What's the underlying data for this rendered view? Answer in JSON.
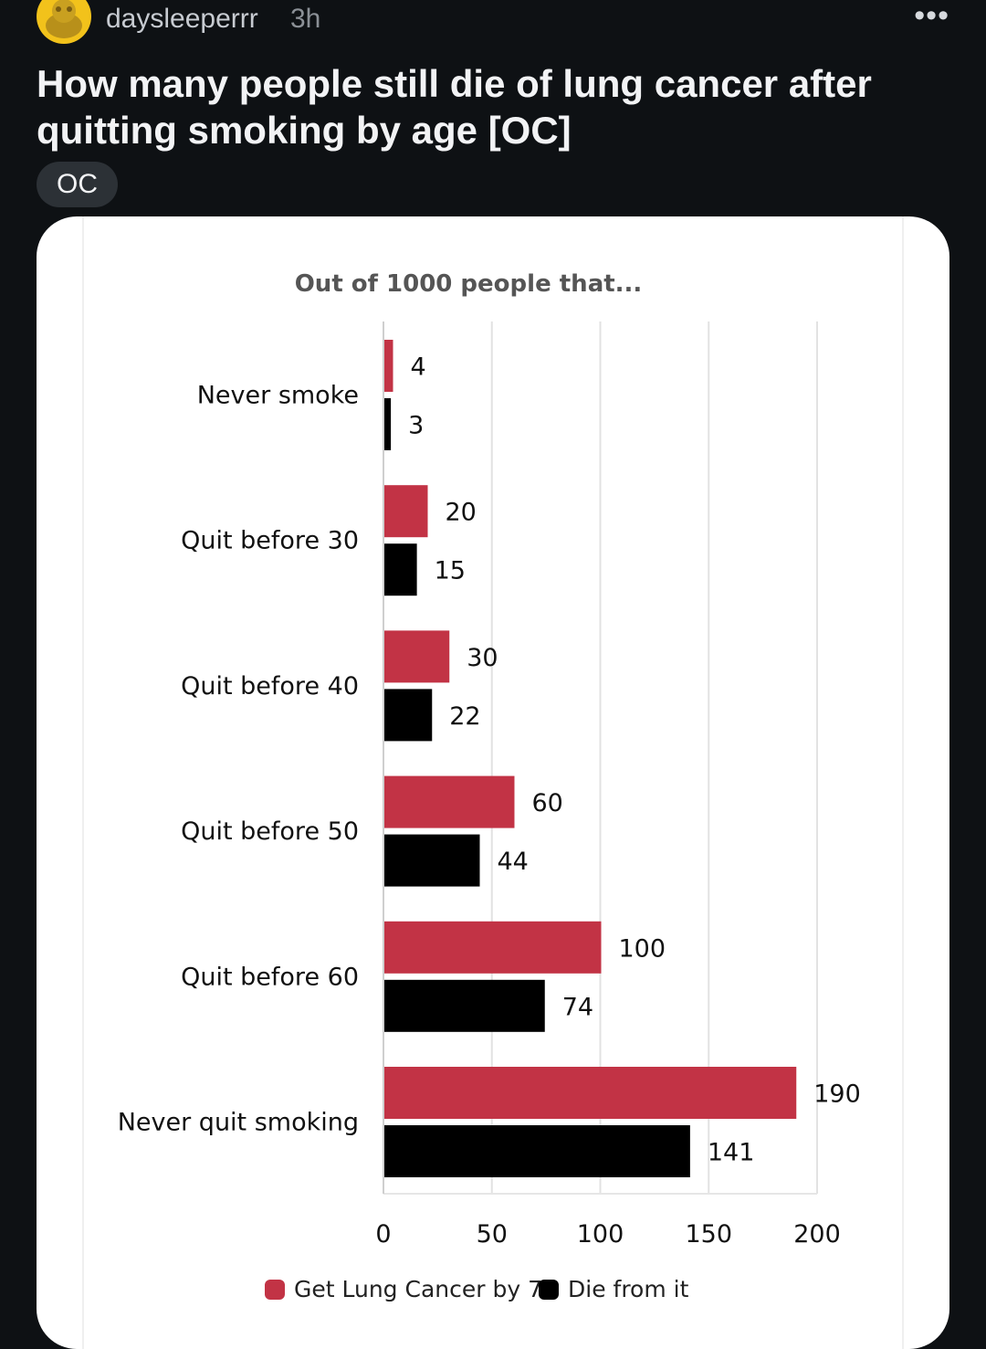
{
  "post": {
    "username": "daysleeperrr",
    "time": "3h",
    "more_label": "•••",
    "title": "How many people still die of lung cancer after quitting smoking by age [OC]",
    "flair": "OC"
  },
  "chart_data": {
    "type": "bar",
    "orientation": "horizontal",
    "title": "Out of 1000 people that...",
    "categories": [
      "Never smoke",
      "Quit before 30",
      "Quit before 40",
      "Quit before 50",
      "Quit before 60",
      "Never quit smoking"
    ],
    "series": [
      {
        "name": "Get Lung Cancer by 75",
        "color": "#c23345",
        "values": [
          4,
          20,
          30,
          60,
          100,
          190
        ]
      },
      {
        "name": "Die from it",
        "color": "#000000",
        "values": [
          3,
          15,
          22,
          44,
          74,
          141
        ]
      }
    ],
    "xlim": [
      0,
      200
    ],
    "xticks": [
      0,
      50,
      100,
      150,
      200
    ],
    "grid": true,
    "legend_position": "bottom"
  }
}
